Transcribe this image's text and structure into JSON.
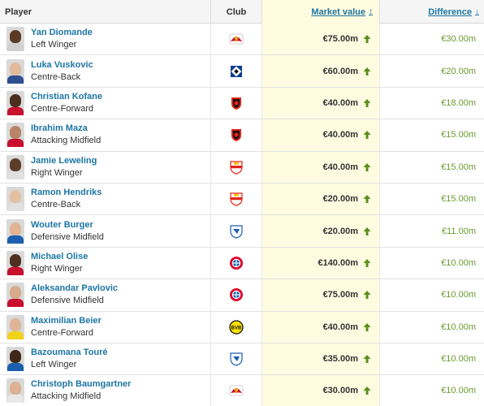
{
  "header": {
    "player": "Player",
    "club": "Club",
    "market_value": "Market value",
    "difference": "Difference"
  },
  "colors": {
    "link": "#1d75a3",
    "highlight_column": "#fffbe0",
    "positive": "#6a9b2e",
    "arrow_up": "#5a8f1c"
  },
  "rows": [
    {
      "name": "Yan Diomande",
      "position": "Left Winger",
      "club_icon": "rb-leipzig-crest",
      "market_value": "€75.00m",
      "difference": "€30.00m",
      "skin": "#5b3a24",
      "shirt": "#cfcfcf"
    },
    {
      "name": "Luka Vuskovic",
      "position": "Centre-Back",
      "club_icon": "hamburger-sv-crest",
      "market_value": "€60.00m",
      "difference": "€20.00m",
      "skin": "#e2b99a",
      "shirt": "#2f4f8f"
    },
    {
      "name": "Christian Kofane",
      "position": "Centre-Forward",
      "club_icon": "bayer-leverkusen-crest",
      "market_value": "€40.00m",
      "difference": "€18.00m",
      "skin": "#4a2f1e",
      "shirt": "#c8102e"
    },
    {
      "name": "Ibrahim Maza",
      "position": "Attacking Midfield",
      "club_icon": "bayer-leverkusen-crest",
      "market_value": "€40.00m",
      "difference": "€15.00m",
      "skin": "#b98467",
      "shirt": "#c8102e"
    },
    {
      "name": "Jamie Leweling",
      "position": "Right Winger",
      "club_icon": "vfb-stuttgart-crest",
      "market_value": "€40.00m",
      "difference": "€15.00m",
      "skin": "#5e3d2a",
      "shirt": "#e0e0e0"
    },
    {
      "name": "Ramon Hendriks",
      "position": "Centre-Back",
      "club_icon": "vfb-stuttgart-crest",
      "market_value": "€20.00m",
      "difference": "€15.00m",
      "skin": "#e4c0a2",
      "shirt": "#e0e0e0"
    },
    {
      "name": "Wouter Burger",
      "position": "Defensive Midfield",
      "club_icon": "hoffenheim-crest",
      "market_value": "€20.00m",
      "difference": "€11.00m",
      "skin": "#e0b393",
      "shirt": "#1c5fae"
    },
    {
      "name": "Michael Olise",
      "position": "Right Winger",
      "club_icon": "bayern-munich-crest",
      "market_value": "€140.00m",
      "difference": "€10.00m",
      "skin": "#4d3020",
      "shirt": "#c8102e"
    },
    {
      "name": "Aleksandar Pavlovic",
      "position": "Defensive Midfield",
      "club_icon": "bayern-munich-crest",
      "market_value": "€75.00m",
      "difference": "€10.00m",
      "skin": "#d8ab8a",
      "shirt": "#c8102e"
    },
    {
      "name": "Maximilian Beier",
      "position": "Centre-Forward",
      "club_icon": "borussia-dortmund-crest",
      "market_value": "€40.00m",
      "difference": "€10.00m",
      "skin": "#deb596",
      "shirt": "#f2d21b"
    },
    {
      "name": "Bazoumana Touré",
      "position": "Left Winger",
      "club_icon": "hoffenheim-crest",
      "market_value": "€35.00m",
      "difference": "€10.00m",
      "skin": "#3f2718",
      "shirt": "#1c5fae"
    },
    {
      "name": "Christoph Baumgartner",
      "position": "Attacking Midfield",
      "club_icon": "rb-leipzig-crest",
      "market_value": "€30.00m",
      "difference": "€10.00m",
      "skin": "#dcb091",
      "shirt": "#e8e8e8"
    }
  ]
}
